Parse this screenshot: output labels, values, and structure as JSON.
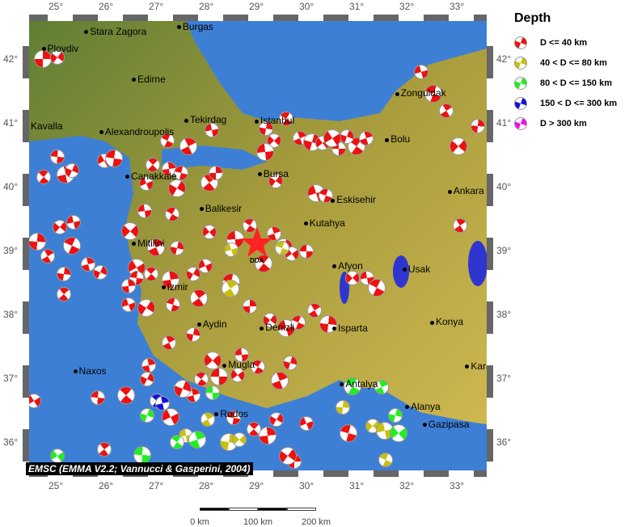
{
  "legend": {
    "title": "Depth",
    "classes": [
      {
        "label": "D <= 40 km",
        "color": "#ee1111"
      },
      {
        "label": "40 < D <= 80 km",
        "color": "#c8c010"
      },
      {
        "label": "80 < D <= 150 km",
        "color": "#22ee22"
      },
      {
        "label": "150 < D <= 300 km",
        "color": "#1111dd"
      },
      {
        "label": "D > 300 km",
        "color": "#ee11ee"
      }
    ]
  },
  "lon_ticks": [
    "25°",
    "26°",
    "27°",
    "28°",
    "29°",
    "30°",
    "31°",
    "32°",
    "33°"
  ],
  "lat_ticks": [
    "42°",
    "41°",
    "40°",
    "39°",
    "38°",
    "37°",
    "36°"
  ],
  "credit": "EMSC (EMMA V2.2; Vannucci & Gasperini, 2004)",
  "scale_bar": {
    "labels": [
      "0 km",
      "100 km",
      "200 km"
    ]
  },
  "main_event": {
    "label": "DDA",
    "lon": 29.0,
    "lat": 39.1
  },
  "cities": [
    {
      "name": "Plovdiv",
      "lon": 24.75,
      "lat": 42.15
    },
    {
      "name": "Stara Zagora",
      "lon": 25.6,
      "lat": 42.42
    },
    {
      "name": "Burgas",
      "lon": 27.45,
      "lat": 42.5
    },
    {
      "name": "Edirne",
      "lon": 26.55,
      "lat": 41.67
    },
    {
      "name": "Kavalla",
      "lon": 24.42,
      "lat": 40.94
    },
    {
      "name": "Alexandroupolis",
      "lon": 25.9,
      "lat": 40.85
    },
    {
      "name": "Tekirdag",
      "lon": 27.5,
      "lat": 40.97
    },
    {
      "name": "Istanbul",
      "lon": 29.0,
      "lat": 41.02
    },
    {
      "name": "Zonguldak",
      "lon": 31.8,
      "lat": 41.45
    },
    {
      "name": "Bolu",
      "lon": 31.6,
      "lat": 40.73
    },
    {
      "name": "Canakkale",
      "lon": 26.42,
      "lat": 40.15
    },
    {
      "name": "Bursa",
      "lon": 29.06,
      "lat": 40.19
    },
    {
      "name": "Eskisehir",
      "lon": 30.52,
      "lat": 39.78
    },
    {
      "name": "Ankara",
      "lon": 32.85,
      "lat": 39.92
    },
    {
      "name": "Balikesir",
      "lon": 27.9,
      "lat": 39.65
    },
    {
      "name": "Kutahya",
      "lon": 29.98,
      "lat": 39.42
    },
    {
      "name": "Mitilini",
      "lon": 26.55,
      "lat": 39.1
    },
    {
      "name": "Afyon",
      "lon": 30.55,
      "lat": 38.75
    },
    {
      "name": "Usak",
      "lon": 31.95,
      "lat": 38.7
    },
    {
      "name": "Izmir",
      "lon": 27.14,
      "lat": 38.42
    },
    {
      "name": "Aydin",
      "lon": 27.85,
      "lat": 37.84
    },
    {
      "name": "Denizli",
      "lon": 29.1,
      "lat": 37.78
    },
    {
      "name": "Isparta",
      "lon": 30.55,
      "lat": 37.77
    },
    {
      "name": "Konya",
      "lon": 32.5,
      "lat": 37.87
    },
    {
      "name": "Mugla",
      "lon": 28.36,
      "lat": 37.2
    },
    {
      "name": "Naxos",
      "lon": 25.38,
      "lat": 37.1
    },
    {
      "name": "Antalya",
      "lon": 30.7,
      "lat": 36.9
    },
    {
      "name": "Karaman",
      "lon": 33.2,
      "lat": 37.18
    },
    {
      "name": "Rodos",
      "lon": 28.2,
      "lat": 36.43
    },
    {
      "name": "Alanya",
      "lon": 32.0,
      "lat": 36.55
    },
    {
      "name": "Gazipasa",
      "lon": 32.35,
      "lat": 36.27
    }
  ],
  "events": [
    [
      24.71,
      42.01,
      0
    ],
    [
      25.03,
      42.01,
      0
    ],
    [
      32.29,
      41.78,
      0
    ],
    [
      32.5,
      41.47,
      0
    ],
    [
      32.79,
      41.18,
      0
    ],
    [
      33.42,
      40.94,
      0
    ],
    [
      33.0,
      40.65,
      0
    ],
    [
      28.11,
      40.87,
      0
    ],
    [
      27.23,
      40.71,
      0
    ],
    [
      27.61,
      40.65,
      0
    ],
    [
      29.19,
      40.9,
      0
    ],
    [
      29.35,
      40.71,
      0
    ],
    [
      29.15,
      40.56,
      0
    ],
    [
      29.6,
      41.05,
      0
    ],
    [
      29.87,
      40.75,
      0
    ],
    [
      30.08,
      40.71,
      0
    ],
    [
      30.32,
      40.67,
      0
    ],
    [
      30.65,
      40.58,
      0
    ],
    [
      30.97,
      40.65,
      0
    ],
    [
      31.19,
      40.75,
      0
    ],
    [
      30.81,
      40.77,
      0
    ],
    [
      30.48,
      40.77,
      0
    ],
    [
      25.03,
      40.46,
      0
    ],
    [
      24.76,
      40.14,
      0
    ],
    [
      25.16,
      40.2,
      0
    ],
    [
      25.32,
      40.24,
      0
    ],
    [
      25.97,
      40.39,
      0
    ],
    [
      26.13,
      40.46,
      0
    ],
    [
      26.94,
      40.33,
      0
    ],
    [
      27.26,
      40.27,
      0
    ],
    [
      27.39,
      39.99,
      0
    ],
    [
      26.81,
      40.04,
      0
    ],
    [
      27.5,
      40.2,
      0
    ],
    [
      28.03,
      40.08,
      0
    ],
    [
      28.19,
      40.2,
      0
    ],
    [
      29.39,
      40.08,
      0
    ],
    [
      30.16,
      39.91,
      0
    ],
    [
      30.39,
      39.85,
      0
    ],
    [
      33.06,
      39.38,
      0
    ],
    [
      24.6,
      39.15,
      0
    ],
    [
      25.08,
      39.35,
      0
    ],
    [
      25.35,
      39.43,
      0
    ],
    [
      25.29,
      39.09,
      0
    ],
    [
      24.84,
      38.9,
      0
    ],
    [
      25.16,
      38.62,
      0
    ],
    [
      26.45,
      39.32,
      0
    ],
    [
      26.77,
      39.61,
      0
    ],
    [
      27.32,
      39.56,
      0
    ],
    [
      26.97,
      39.06,
      0
    ],
    [
      27.42,
      39.03,
      0
    ],
    [
      28.06,
      39.28,
      0
    ],
    [
      28.55,
      39.19,
      0
    ],
    [
      28.87,
      39.38,
      0
    ],
    [
      29.35,
      39.25,
      0
    ],
    [
      29.52,
      39.06,
      0
    ],
    [
      29.71,
      38.94,
      0
    ],
    [
      30.0,
      38.97,
      0
    ],
    [
      29.11,
      38.81,
      0
    ],
    [
      25.65,
      38.77,
      0
    ],
    [
      25.89,
      38.65,
      0
    ],
    [
      26.58,
      38.75,
      0
    ],
    [
      26.61,
      38.56,
      0
    ],
    [
      26.9,
      38.62,
      0
    ],
    [
      27.26,
      38.56,
      0
    ],
    [
      27.74,
      38.62,
      0
    ],
    [
      27.98,
      38.75,
      0
    ],
    [
      28.47,
      38.52,
      0
    ],
    [
      25.16,
      38.3,
      0
    ],
    [
      26.45,
      38.43,
      0
    ],
    [
      26.77,
      38.11,
      0
    ],
    [
      26.45,
      38.14,
      0
    ],
    [
      27.34,
      38.14,
      0
    ],
    [
      27.82,
      38.27,
      0
    ],
    [
      28.87,
      38.11,
      0
    ],
    [
      29.27,
      37.9,
      0
    ],
    [
      29.56,
      37.8,
      0
    ],
    [
      29.84,
      37.86,
      0
    ],
    [
      30.16,
      38.05,
      0
    ],
    [
      30.4,
      37.86,
      0
    ],
    [
      30.92,
      38.56,
      0
    ],
    [
      31.21,
      38.56,
      0
    ],
    [
      31.37,
      38.43,
      0
    ],
    [
      27.26,
      37.54,
      0
    ],
    [
      27.74,
      37.67,
      0
    ],
    [
      28.1,
      37.29,
      0
    ],
    [
      28.71,
      37.35,
      0
    ],
    [
      29.03,
      37.16,
      0
    ],
    [
      29.44,
      36.97,
      0
    ],
    [
      29.68,
      37.23,
      0
    ],
    [
      28.63,
      37.04,
      0
    ],
    [
      28.23,
      37.04,
      0
    ],
    [
      27.9,
      36.97,
      0
    ],
    [
      27.74,
      36.72,
      0
    ],
    [
      27.5,
      36.85,
      0
    ],
    [
      24.56,
      36.63,
      0
    ],
    [
      25.84,
      36.68,
      0
    ],
    [
      26.37,
      36.75,
      0
    ],
    [
      26.85,
      37.19,
      0
    ],
    [
      26.82,
      36.97,
      0
    ],
    [
      27.26,
      36.41,
      0
    ],
    [
      28.55,
      36.37,
      0
    ],
    [
      28.95,
      36.19,
      0
    ],
    [
      29.19,
      36.11,
      0
    ],
    [
      29.4,
      36.34,
      0
    ],
    [
      30.0,
      36.28,
      0
    ],
    [
      30.81,
      36.15,
      0
    ],
    [
      25.97,
      35.87,
      0
    ],
    [
      29.76,
      35.68,
      0
    ],
    [
      29.6,
      35.8,
      0
    ],
    [
      28.5,
      39.0,
      1
    ],
    [
      29.52,
      39.03,
      1
    ],
    [
      28.45,
      38.42,
      1
    ],
    [
      30.73,
      36.53,
      1
    ],
    [
      31.32,
      36.24,
      1
    ],
    [
      31.53,
      36.19,
      1
    ],
    [
      31.58,
      35.71,
      1
    ],
    [
      28.03,
      36.34,
      1
    ],
    [
      28.42,
      36.01,
      1
    ],
    [
      28.66,
      36.03,
      1
    ],
    [
      27.6,
      36.09,
      1
    ],
    [
      30.89,
      36.89,
      2
    ],
    [
      31.5,
      36.85,
      2
    ],
    [
      31.77,
      36.41,
      2
    ],
    [
      31.81,
      36.15,
      2
    ],
    [
      28.13,
      36.76,
      2
    ],
    [
      27.42,
      35.99,
      2
    ],
    [
      27.79,
      36.05,
      2
    ],
    [
      26.82,
      36.41,
      2
    ],
    [
      25.03,
      35.77,
      2
    ],
    [
      26.69,
      35.81,
      2
    ],
    [
      27.02,
      36.63,
      3
    ],
    [
      27.13,
      36.59,
      3
    ]
  ]
}
